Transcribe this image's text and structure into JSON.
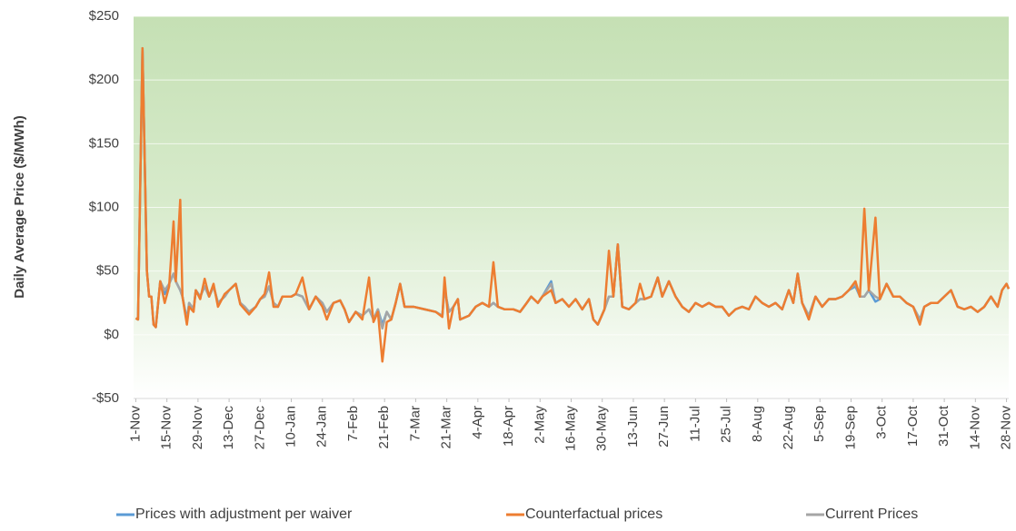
{
  "chart_data": {
    "type": "line",
    "y_label": "Daily  Average  Price ($/MWh)",
    "xlim": [
      -1,
      393
    ],
    "xticks": [
      {
        "value": 0,
        "label": "1-Nov"
      },
      {
        "value": 14,
        "label": "15-Nov"
      },
      {
        "value": 28,
        "label": "29-Nov"
      },
      {
        "value": 42,
        "label": "13-Dec"
      },
      {
        "value": 56,
        "label": "27-Dec"
      },
      {
        "value": 70,
        "label": "10-Jan"
      },
      {
        "value": 84,
        "label": "24-Jan"
      },
      {
        "value": 98,
        "label": "7-Feb"
      },
      {
        "value": 112,
        "label": "21-Feb"
      },
      {
        "value": 126,
        "label": "7-Mar"
      },
      {
        "value": 140,
        "label": "21-Mar"
      },
      {
        "value": 154,
        "label": "4-Apr"
      },
      {
        "value": 168,
        "label": "18-Apr"
      },
      {
        "value": 182,
        "label": "2-May"
      },
      {
        "value": 196,
        "label": "16-May"
      },
      {
        "value": 210,
        "label": "30-May"
      },
      {
        "value": 224,
        "label": "13-Jun"
      },
      {
        "value": 238,
        "label": "27-Jun"
      },
      {
        "value": 252,
        "label": "11-Jul"
      },
      {
        "value": 266,
        "label": "25-Jul"
      },
      {
        "value": 280,
        "label": "8-Aug"
      },
      {
        "value": 294,
        "label": "22-Aug"
      },
      {
        "value": 308,
        "label": "5-Sep"
      },
      {
        "value": 322,
        "label": "19-Sep"
      },
      {
        "value": 336,
        "label": "3-Oct"
      },
      {
        "value": 350,
        "label": "17-Oct"
      },
      {
        "value": 364,
        "label": "31-Oct"
      },
      {
        "value": 378,
        "label": "14-Nov"
      },
      {
        "value": 392,
        "label": "28-Nov"
      }
    ],
    "ylim": [
      -50,
      250
    ],
    "yticks": [
      {
        "value": -50,
        "label": "-$50"
      },
      {
        "value": 0,
        "label": "$0"
      },
      {
        "value": 50,
        "label": "$50"
      },
      {
        "value": 100,
        "label": "$100"
      },
      {
        "value": 150,
        "label": "$150"
      },
      {
        "value": 200,
        "label": "$200"
      },
      {
        "value": 250,
        "label": "$250"
      }
    ],
    "grid": true,
    "legend": "bottom",
    "x": [
      0,
      1,
      3,
      5,
      6,
      7,
      8,
      9,
      11,
      13,
      15,
      17,
      18,
      20,
      21,
      23,
      24,
      26,
      27,
      29,
      31,
      33,
      35,
      37,
      40,
      42,
      45,
      47,
      49,
      51,
      54,
      56,
      58,
      60,
      62,
      64,
      66,
      70,
      72,
      75,
      78,
      81,
      84,
      86,
      89,
      92,
      94,
      96,
      99,
      102,
      105,
      107,
      109,
      111,
      113,
      115,
      117,
      119,
      121,
      125,
      130,
      135,
      138,
      139,
      141,
      143,
      145,
      146,
      150,
      153,
      156,
      159,
      161,
      163,
      166,
      170,
      173,
      176,
      178,
      181,
      183,
      187,
      189,
      192,
      195,
      198,
      201,
      204,
      206,
      208,
      211,
      213,
      215,
      217,
      219,
      222,
      225,
      227,
      229,
      232,
      235,
      237,
      240,
      243,
      246,
      249,
      252,
      255,
      258,
      261,
      264,
      267,
      270,
      273,
      276,
      279,
      282,
      285,
      288,
      291,
      294,
      296,
      298,
      300,
      303,
      306,
      309,
      312,
      315,
      318,
      321,
      324,
      326,
      328,
      330,
      333,
      335,
      338,
      341,
      344,
      347,
      350,
      353,
      355,
      358,
      361,
      364,
      367,
      370,
      373,
      376,
      379,
      382,
      385,
      388,
      390,
      392,
      393
    ],
    "series": [
      {
        "name": "Prices with adjustment per waiver",
        "color": "#5b9bd5",
        "values": [
          13,
          12,
          225,
          50,
          30,
          30,
          8,
          6,
          42,
          32,
          40,
          48,
          42,
          35,
          30,
          12,
          25,
          20,
          35,
          30,
          38,
          30,
          38,
          25,
          30,
          35,
          40,
          25,
          22,
          18,
          22,
          28,
          30,
          38,
          25,
          22,
          30,
          30,
          32,
          30,
          20,
          30,
          25,
          18,
          25,
          27,
          20,
          10,
          18,
          15,
          20,
          12,
          20,
          8,
          18,
          12,
          25,
          40,
          22,
          22,
          20,
          18,
          15,
          36,
          18,
          22,
          28,
          12,
          15,
          22,
          25,
          22,
          25,
          22,
          20,
          20,
          18,
          25,
          30,
          25,
          30,
          42,
          25,
          28,
          22,
          28,
          20,
          28,
          12,
          8,
          20,
          30,
          30,
          71,
          22,
          20,
          25,
          28,
          28,
          30,
          45,
          30,
          42,
          30,
          22,
          18,
          25,
          22,
          25,
          22,
          22,
          15,
          20,
          22,
          20,
          30,
          25,
          22,
          25,
          20,
          35,
          25,
          48,
          25,
          15,
          30,
          22,
          28,
          28,
          30,
          35,
          38,
          30,
          30,
          35,
          26,
          28,
          40,
          30,
          30,
          25,
          22,
          12,
          22,
          25,
          25,
          30,
          35,
          22,
          20,
          22,
          18,
          22,
          30,
          22,
          35,
          40,
          36
        ]
      },
      {
        "name": "Counterfactual prices",
        "color": "#ed7d31",
        "values": [
          13,
          12,
          225,
          50,
          30,
          30,
          8,
          6,
          42,
          25,
          38,
          89,
          42,
          106,
          30,
          8,
          22,
          18,
          35,
          28,
          44,
          30,
          40,
          22,
          32,
          35,
          40,
          24,
          20,
          16,
          22,
          28,
          32,
          49,
          22,
          22,
          30,
          30,
          32,
          45,
          20,
          30,
          22,
          12,
          25,
          27,
          20,
          10,
          18,
          12,
          45,
          10,
          18,
          -21,
          10,
          12,
          25,
          40,
          22,
          22,
          20,
          18,
          14,
          45,
          5,
          22,
          28,
          12,
          15,
          22,
          25,
          22,
          57,
          22,
          20,
          20,
          18,
          25,
          30,
          25,
          30,
          35,
          25,
          28,
          22,
          28,
          20,
          28,
          12,
          8,
          20,
          66,
          30,
          71,
          22,
          20,
          25,
          40,
          28,
          30,
          45,
          30,
          42,
          30,
          22,
          18,
          25,
          22,
          25,
          22,
          22,
          15,
          20,
          22,
          20,
          30,
          25,
          22,
          25,
          20,
          35,
          25,
          48,
          25,
          12,
          30,
          22,
          28,
          28,
          30,
          35,
          42,
          30,
          99,
          35,
          92,
          28,
          40,
          30,
          30,
          25,
          22,
          8,
          22,
          25,
          25,
          30,
          35,
          22,
          20,
          22,
          18,
          22,
          30,
          22,
          35,
          40,
          36
        ]
      },
      {
        "name": "Current Prices",
        "color": "#a5a5a5",
        "values": [
          13,
          12,
          225,
          50,
          30,
          30,
          8,
          6,
          42,
          35,
          40,
          48,
          42,
          35,
          30,
          10,
          25,
          20,
          35,
          30,
          38,
          30,
          38,
          25,
          30,
          35,
          40,
          25,
          22,
          18,
          22,
          28,
          30,
          38,
          25,
          22,
          30,
          30,
          32,
          30,
          20,
          30,
          25,
          18,
          25,
          27,
          20,
          10,
          18,
          15,
          20,
          12,
          20,
          5,
          18,
          12,
          25,
          40,
          22,
          22,
          20,
          18,
          15,
          36,
          18,
          22,
          28,
          12,
          15,
          22,
          25,
          22,
          25,
          22,
          20,
          20,
          18,
          25,
          30,
          25,
          30,
          40,
          25,
          28,
          22,
          28,
          20,
          28,
          12,
          8,
          20,
          30,
          30,
          71,
          22,
          20,
          25,
          28,
          28,
          30,
          45,
          30,
          42,
          30,
          22,
          18,
          25,
          22,
          25,
          22,
          22,
          15,
          20,
          22,
          20,
          30,
          25,
          22,
          25,
          20,
          35,
          25,
          48,
          25,
          15,
          30,
          22,
          28,
          28,
          30,
          35,
          40,
          30,
          30,
          35,
          30,
          28,
          40,
          30,
          30,
          25,
          22,
          12,
          22,
          25,
          25,
          30,
          35,
          22,
          20,
          22,
          18,
          22,
          30,
          22,
          35,
          40,
          36
        ]
      }
    ]
  }
}
